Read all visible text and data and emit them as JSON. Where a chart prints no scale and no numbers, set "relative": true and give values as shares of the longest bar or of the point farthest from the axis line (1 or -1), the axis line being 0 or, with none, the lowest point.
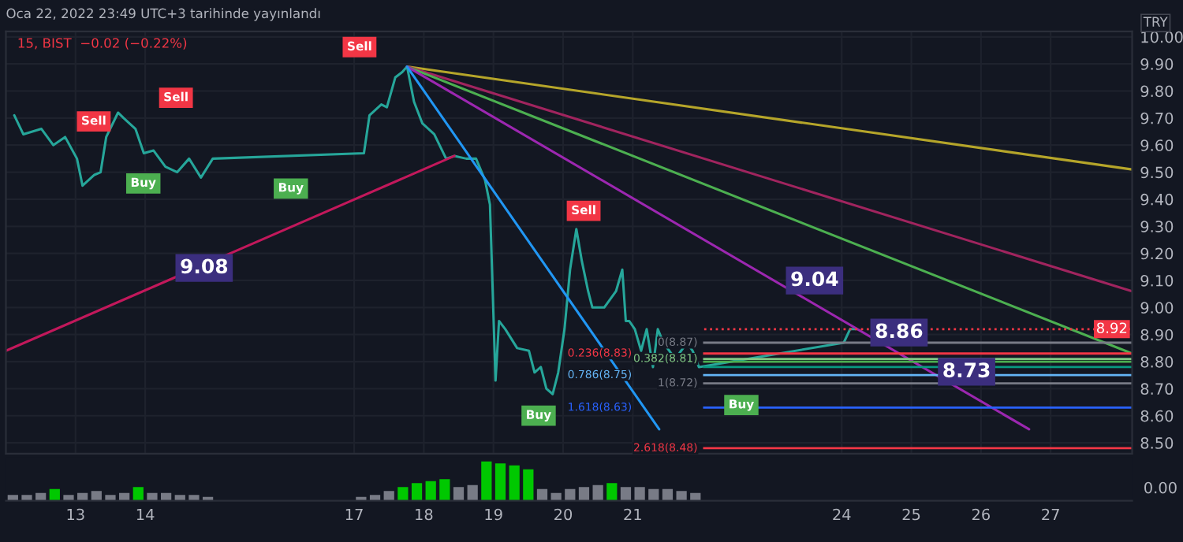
{
  "chart_data": [
    {
      "type": "line",
      "title": "15, BIST  −0.02 (−0.22%)",
      "ylabel": "TRY",
      "xlim": [
        "2022-01-12T00:00",
        "2022-01-28T04:05"
      ],
      "ylim": [
        8.46,
        10.02
      ],
      "xticks": [
        {
          "value": "2022-01-13",
          "label": "13"
        },
        {
          "value": "2022-01-14",
          "label": "14"
        },
        {
          "value": "2022-01-17",
          "label": "17"
        },
        {
          "value": "2022-01-18",
          "label": "18"
        },
        {
          "value": "2022-01-19",
          "label": "19"
        },
        {
          "value": "2022-01-20",
          "label": "20"
        },
        {
          "value": "2022-01-21",
          "label": "21"
        },
        {
          "value": "2022-01-24",
          "label": "24"
        },
        {
          "value": "2022-01-25",
          "label": "25"
        },
        {
          "value": "2022-01-26",
          "label": "26"
        },
        {
          "value": "2022-01-27",
          "label": "27"
        }
      ],
      "yticks": [
        {
          "value": 8.5,
          "label": "8.50"
        },
        {
          "value": 8.6,
          "label": "8.60"
        },
        {
          "value": 8.7,
          "label": "8.70"
        },
        {
          "value": 8.8,
          "label": "8.80"
        },
        {
          "value": 8.9,
          "label": "8.90"
        },
        {
          "value": 9.0,
          "label": "9.00"
        },
        {
          "value": 9.1,
          "label": "9.10"
        },
        {
          "value": 9.2,
          "label": "9.20"
        },
        {
          "value": 9.3,
          "label": "9.30"
        },
        {
          "value": 9.4,
          "label": "9.40"
        },
        {
          "value": 9.5,
          "label": "9.50"
        },
        {
          "value": 9.6,
          "label": "9.60"
        },
        {
          "value": 9.7,
          "label": "9.70"
        },
        {
          "value": 9.8,
          "label": "9.80"
        },
        {
          "value": 9.9,
          "label": "9.90"
        },
        {
          "value": 10.0,
          "label": "10.00"
        }
      ],
      "grid": true,
      "line_style": "solid",
      "series": [
        {
          "color": "#26a69a",
          "x": [
            "2022-01-12T02:53",
            "2022-01-12T06:00",
            "2022-01-12T12:14",
            "2022-01-12T16:19",
            "2022-01-12T20:24",
            "2022-01-13T00:29",
            "2022-01-13T02:24",
            "2022-01-13T06:29",
            "2022-01-13T08:38",
            "2022-01-13T10:34",
            "2022-01-13T14:38",
            "2022-01-13T16:34",
            "2022-01-13T20:38",
            "2022-01-13T23:31",
            "2022-01-14T02:53",
            "2022-01-14T06:58",
            "2022-01-14T11:02",
            "2022-01-14T15:07",
            "2022-01-14T19:12",
            "2022-01-14T23:17",
            "2022-01-17T03:22",
            "2022-01-17T05:17",
            "2022-01-17T09:22",
            "2022-01-17T11:17",
            "2022-01-17T14:10",
            "2022-01-17T16:34",
            "2022-01-17T18:14",
            "2022-01-17T20:38",
            "2022-01-17T23:31",
            "2022-01-18T03:36",
            "2022-01-18T07:41",
            "2022-01-18T10:34",
            "2022-01-18T14:38",
            "2022-01-18T18:00",
            "2022-01-18T21:07",
            "2022-01-18T22:48",
            "2022-01-19T00:43",
            "2022-01-19T01:55",
            "2022-01-19T04:05",
            "2022-01-19T08:10",
            "2022-01-19T12:14",
            "2022-01-19T14:10",
            "2022-01-19T16:19",
            "2022-01-19T18:14",
            "2022-01-19T20:24",
            "2022-01-19T22:19",
            "2022-01-20T00:29",
            "2022-01-20T02:24",
            "2022-01-20T04:34",
            "2022-01-20T06:29",
            "2022-01-20T08:38",
            "2022-01-20T10:05",
            "2022-01-20T14:10",
            "2022-01-20T18:14",
            "2022-01-20T20:24",
            "2022-01-20T21:36",
            "2022-01-20T22:48",
            "2022-01-21T00:43",
            "2022-01-21T02:53",
            "2022-01-21T04:48",
            "2022-01-21T06:58",
            "2022-01-21T08:38",
            "2022-01-21T10:34",
            "2022-01-21T14:38",
            "2022-01-21T18:43",
            "2022-01-21T20:38",
            "2022-01-21T22:48",
            "2022-01-24T00:43",
            "2022-01-24T02:53",
            "2022-01-24T04:48"
          ],
          "values": [
            9.71,
            9.64,
            9.66,
            9.6,
            9.63,
            9.55,
            9.45,
            9.49,
            9.5,
            9.63,
            9.72,
            9.7,
            9.66,
            9.57,
            9.58,
            9.52,
            9.5,
            9.55,
            9.48,
            9.55,
            9.57,
            9.71,
            9.75,
            9.74,
            9.85,
            9.87,
            9.89,
            9.76,
            9.68,
            9.64,
            9.55,
            9.56,
            9.55,
            9.55,
            9.47,
            9.38,
            8.73,
            8.95,
            8.92,
            8.85,
            8.84,
            8.76,
            8.78,
            8.7,
            8.68,
            8.76,
            8.92,
            9.14,
            9.29,
            9.17,
            9.06,
            9.0,
            9.0,
            9.06,
            9.14,
            8.95,
            8.95,
            8.92,
            8.84,
            8.92,
            8.78,
            8.92,
            8.87,
            8.81,
            8.87,
            8.84,
            8.78,
            8.87,
            8.92,
            8.92
          ]
        },
        {
          "color": "#b5a52a",
          "x": [
            "2022-01-17T18:14",
            "2022-01-28T04:05"
          ],
          "values": [
            9.89,
            9.51
          ]
        },
        {
          "color": "#a0245e",
          "x": [
            "2022-01-17T18:14",
            "2022-01-28T04:05"
          ],
          "values": [
            9.89,
            9.06
          ]
        },
        {
          "color": "#4caf50",
          "x": [
            "2022-01-17T18:14",
            "2022-01-28T04:05"
          ],
          "values": [
            9.89,
            8.83
          ]
        },
        {
          "color": "#9c27b0",
          "x": [
            "2022-01-17T18:14",
            "2022-01-26T16:34"
          ],
          "values": [
            9.89,
            8.55
          ]
        },
        {
          "color": "#2196f3",
          "x": [
            "2022-01-17T18:14",
            "2022-01-21T09:07"
          ],
          "values": [
            9.89,
            8.55
          ]
        },
        {
          "color": "#c2185b",
          "x": [
            "2022-01-12T00:00",
            "2022-01-18T10:34"
          ],
          "values": [
            8.84,
            9.56
          ]
        }
      ],
      "ref_lines": [
        {
          "axis": "y",
          "value": 8.92,
          "label": "8.92",
          "color": "#f23645",
          "line_style": "dotted"
        },
        {
          "axis": "y",
          "value": 8.87,
          "label": "0(8.87)",
          "color": "#787b86"
        },
        {
          "axis": "y",
          "value": 8.83,
          "label": "0.236(8.83)",
          "color": "#f23645"
        },
        {
          "axis": "y",
          "value": 8.81,
          "label": "0.382(8.81)",
          "color": "#81c784"
        },
        {
          "axis": "y",
          "value": 8.8,
          "label": null,
          "color": "#4caf50"
        },
        {
          "axis": "y",
          "value": 8.78,
          "label": null,
          "color": "#089981"
        },
        {
          "axis": "y",
          "value": 8.75,
          "label": "0.786(8.75)",
          "color": "#64b5f6"
        },
        {
          "axis": "y",
          "value": 8.72,
          "label": "1(8.72)",
          "color": "#787b86"
        },
        {
          "axis": "y",
          "value": 8.63,
          "label": "1.618(8.63)",
          "color": "#2962ff"
        },
        {
          "axis": "y",
          "value": 8.48,
          "label": "2.618(8.48)",
          "color": "#f23645"
        }
      ],
      "annotations": [
        "Oca 22, 2022 23:49 UTC+3 tarihinde yayınlandı",
        "9.08",
        "9.04",
        "8.86",
        "8.73",
        "Sell",
        "Sell",
        "Sell",
        "Sell",
        "Buy",
        "Buy",
        "Buy",
        "Buy"
      ]
    },
    {
      "type": "bar",
      "relative": true,
      "xlim": [
        "2022-01-12T00:00",
        "2022-01-28T04:05"
      ],
      "tick_labels": false,
      "annotations": [
        "0.00"
      ],
      "x": [
        "2022-01-12T02:24",
        "2022-01-12T07:12",
        "2022-01-12T12:00",
        "2022-01-12T16:48",
        "2022-01-12T21:36",
        "2022-01-13T02:24",
        "2022-01-13T07:12",
        "2022-01-13T12:00",
        "2022-01-13T16:48",
        "2022-01-13T21:36",
        "2022-01-14T02:24",
        "2022-01-14T07:12",
        "2022-01-14T12:00",
        "2022-01-14T16:48",
        "2022-01-14T21:36",
        "2022-01-17T02:24",
        "2022-01-17T07:12",
        "2022-01-17T12:00",
        "2022-01-17T16:48",
        "2022-01-17T21:36",
        "2022-01-18T02:24",
        "2022-01-18T07:12",
        "2022-01-18T12:00",
        "2022-01-18T16:48",
        "2022-01-18T21:36",
        "2022-01-19T02:24",
        "2022-01-19T07:12",
        "2022-01-19T12:00",
        "2022-01-19T16:48",
        "2022-01-19T21:36",
        "2022-01-20T02:24",
        "2022-01-20T07:12",
        "2022-01-20T12:00",
        "2022-01-20T16:48",
        "2022-01-20T21:36",
        "2022-01-21T02:24",
        "2022-01-21T07:12",
        "2022-01-21T12:00",
        "2022-01-21T16:48",
        "2022-01-21T21:36"
      ],
      "values": [
        0.15,
        0.15,
        0.2,
        0.3,
        0.15,
        0.2,
        0.25,
        0.15,
        0.2,
        0.35,
        0.2,
        0.2,
        0.15,
        0.15,
        0.1,
        0.1,
        0.15,
        0.25,
        0.35,
        0.45,
        0.5,
        0.55,
        0.35,
        0.4,
        1.0,
        0.95,
        0.9,
        0.8,
        0.3,
        0.2,
        0.3,
        0.35,
        0.4,
        0.45,
        0.35,
        0.35,
        0.3,
        0.3,
        0.25,
        0.2
      ],
      "colors": [
        "#787b86",
        "#787b86",
        "#787b86",
        "#00c800",
        "#787b86",
        "#787b86",
        "#787b86",
        "#787b86",
        "#787b86",
        "#00c800",
        "#787b86",
        "#787b86",
        "#787b86",
        "#787b86",
        "#787b86",
        "#787b86",
        "#787b86",
        "#787b86",
        "#00c800",
        "#00c800",
        "#00c800",
        "#00c800",
        "#787b86",
        "#787b86",
        "#00c800",
        "#00c800",
        "#00c800",
        "#00c800",
        "#787b86",
        "#787b86",
        "#787b86",
        "#787b86",
        "#787b86",
        "#00c800",
        "#787b86",
        "#787b86",
        "#787b86",
        "#787b86",
        "#787b86",
        "#787b86"
      ]
    }
  ]
}
